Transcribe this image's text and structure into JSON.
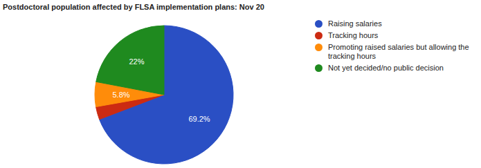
{
  "chart_data": {
    "type": "pie",
    "title": "Postdoctoral population affected by FLSA implementation plans: Nov 20",
    "categories": [
      "Raising salaries",
      "Tracking hours",
      "Promoting raised salaries but allowing the tracking hours",
      "Not yet decided/no public decision"
    ],
    "values": [
      69.2,
      3.0,
      5.8,
      22
    ],
    "value_labels": [
      "69.2%",
      null,
      "5.8%",
      "22%"
    ],
    "colors": [
      "#2a4fc4",
      "#cc2b12",
      "#ff8c0a",
      "#1f8a1f"
    ],
    "data_labels": true,
    "legend": "right"
  }
}
